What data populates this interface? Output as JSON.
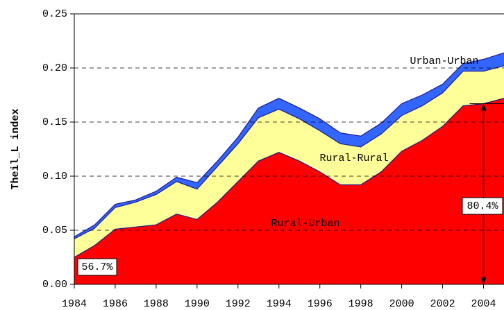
{
  "chart_data": {
    "type": "stacked_area",
    "y_label": "Theil_L index",
    "x": [
      1984,
      1985,
      1986,
      1987,
      1988,
      1989,
      1990,
      1991,
      1992,
      1993,
      1994,
      1995,
      1996,
      1997,
      1998,
      1999,
      2000,
      2001,
      2002,
      2003,
      2004,
      2005
    ],
    "series": [
      {
        "name": "Rural-Urban",
        "color": "#ff0000",
        "values": [
          0.025,
          0.036,
          0.051,
          0.053,
          0.055,
          0.065,
          0.06,
          0.076,
          0.095,
          0.114,
          0.122,
          0.114,
          0.104,
          0.092,
          0.092,
          0.104,
          0.123,
          0.133,
          0.146,
          0.165,
          0.167,
          0.172
        ]
      },
      {
        "name": "Rural-Rural",
        "color": "#ffff99",
        "values": [
          0.017,
          0.016,
          0.02,
          0.023,
          0.028,
          0.03,
          0.028,
          0.033,
          0.035,
          0.04,
          0.04,
          0.039,
          0.038,
          0.038,
          0.035,
          0.035,
          0.033,
          0.032,
          0.031,
          0.032,
          0.03,
          0.03
        ]
      },
      {
        "name": "Urban-Urban",
        "color": "#3366ff",
        "values": [
          0.002,
          0.003,
          0.003,
          0.002,
          0.003,
          0.004,
          0.006,
          0.005,
          0.006,
          0.009,
          0.01,
          0.01,
          0.011,
          0.01,
          0.01,
          0.01,
          0.011,
          0.01,
          0.008,
          0.007,
          0.011,
          0.012
        ]
      }
    ],
    "annotations": [
      "56.7%",
      "80.4%"
    ],
    "xlim": [
      1984,
      2005
    ],
    "xticks": [
      1984,
      1986,
      1988,
      1990,
      1992,
      1994,
      1996,
      1998,
      2000,
      2002,
      2004
    ],
    "ylim": [
      0,
      0.25
    ],
    "yticks": [
      {
        "value": 0,
        "label": "0.00"
      },
      0.05,
      {
        "value": 0.1,
        "label": "0.10"
      },
      0.15,
      {
        "value": 0.2,
        "label": "0.20"
      },
      0.25
    ],
    "grid": true
  }
}
